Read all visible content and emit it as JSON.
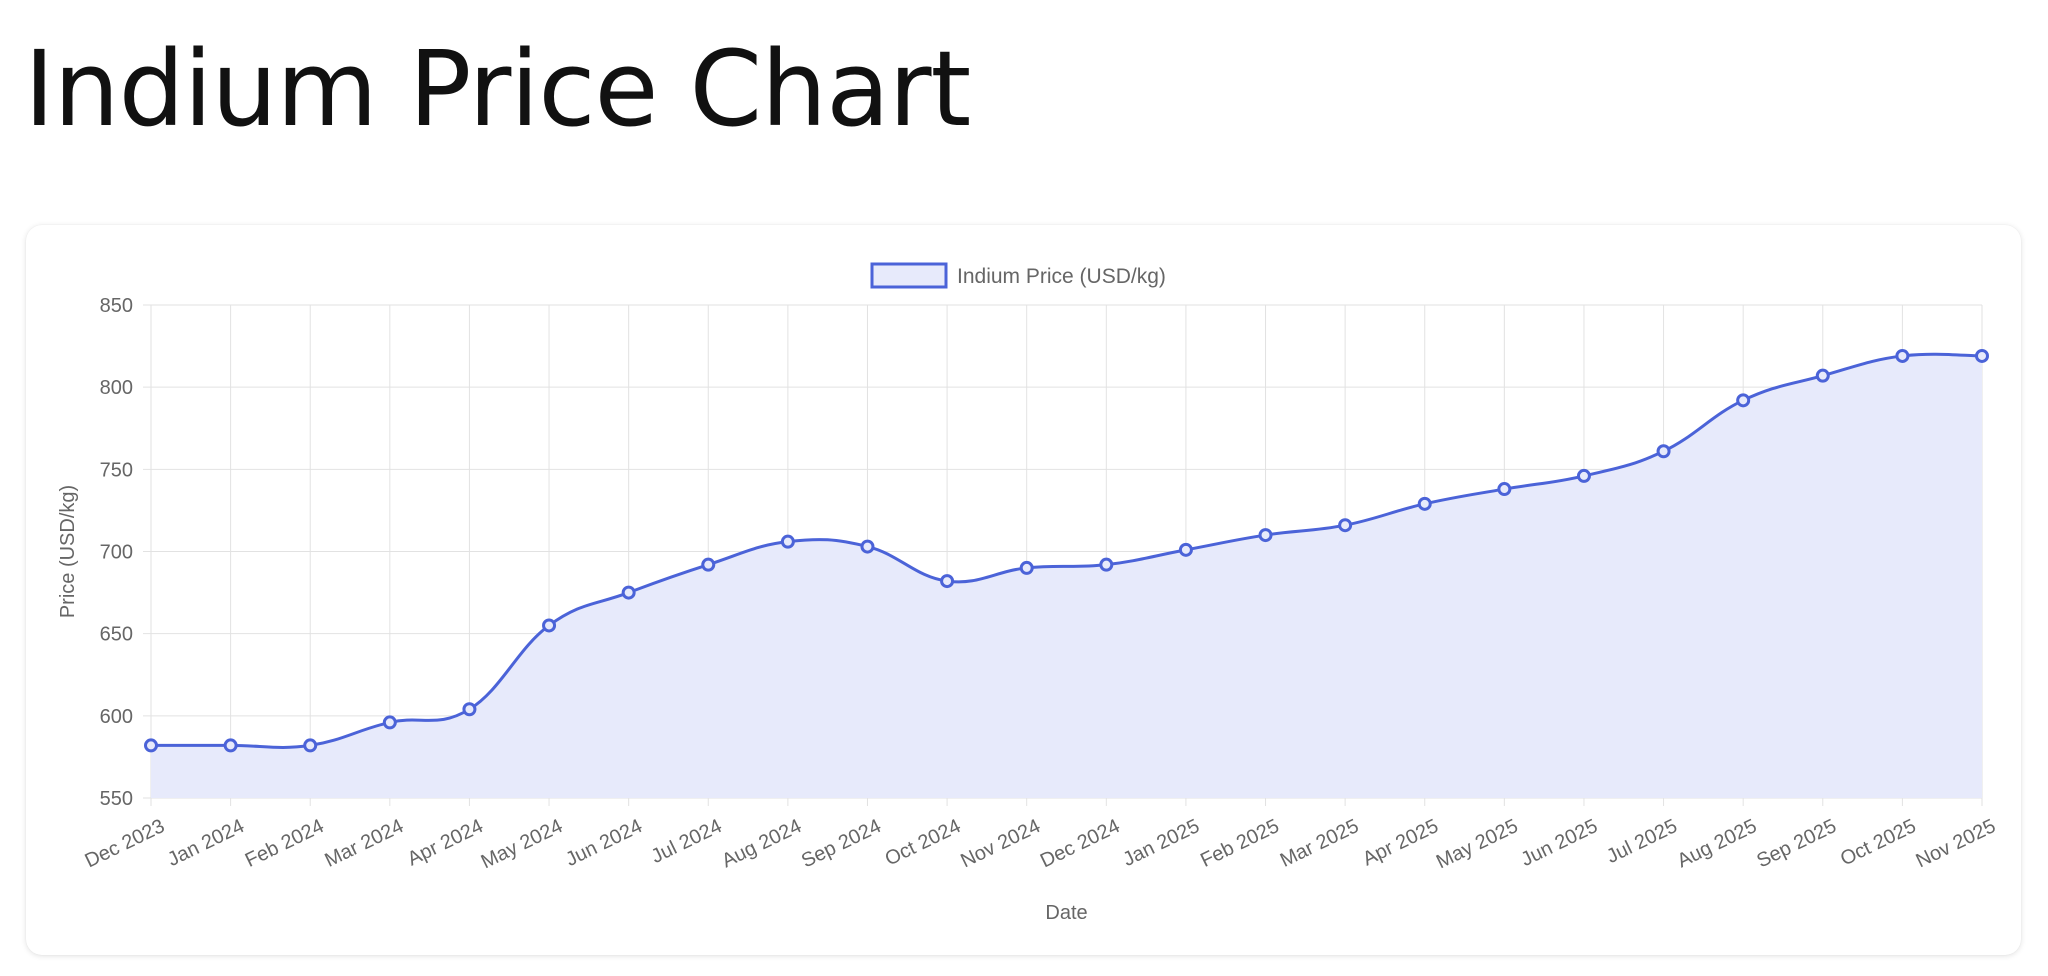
{
  "page": {
    "title": "Indium Price Chart"
  },
  "colors": {
    "line": "#4b63d8",
    "fill": "#e7eafb",
    "grid": "#e2e2e2",
    "text": "#666666"
  },
  "chart_data": {
    "type": "line",
    "title": "",
    "xlabel": "Date",
    "ylabel": "Price (USD/kg)",
    "ylim": [
      550,
      850
    ],
    "yticks": [
      850,
      800,
      750,
      700,
      650,
      600,
      550
    ],
    "grid": true,
    "legend_position": "top-center",
    "categories": [
      "Dec 2023",
      "Jan 2024",
      "Feb 2024",
      "Mar 2024",
      "Apr 2024",
      "May 2024",
      "Jun 2024",
      "Jul 2024",
      "Aug 2024",
      "Sep 2024",
      "Oct 2024",
      "Nov 2024",
      "Dec 2024",
      "Jan 2025",
      "Feb 2025",
      "Mar 2025",
      "Apr 2025",
      "May 2025",
      "Jun 2025",
      "Jul 2025",
      "Aug 2025",
      "Sep 2025",
      "Oct 2025",
      "Nov 2025"
    ],
    "series": [
      {
        "name": "Indium Price (USD/kg)",
        "values": [
          582,
          582,
          582,
          596,
          604,
          655,
          675,
          692,
          706,
          703,
          682,
          690,
          692,
          701,
          710,
          716,
          729,
          738,
          746,
          761,
          792,
          807,
          819,
          819
        ]
      }
    ]
  }
}
